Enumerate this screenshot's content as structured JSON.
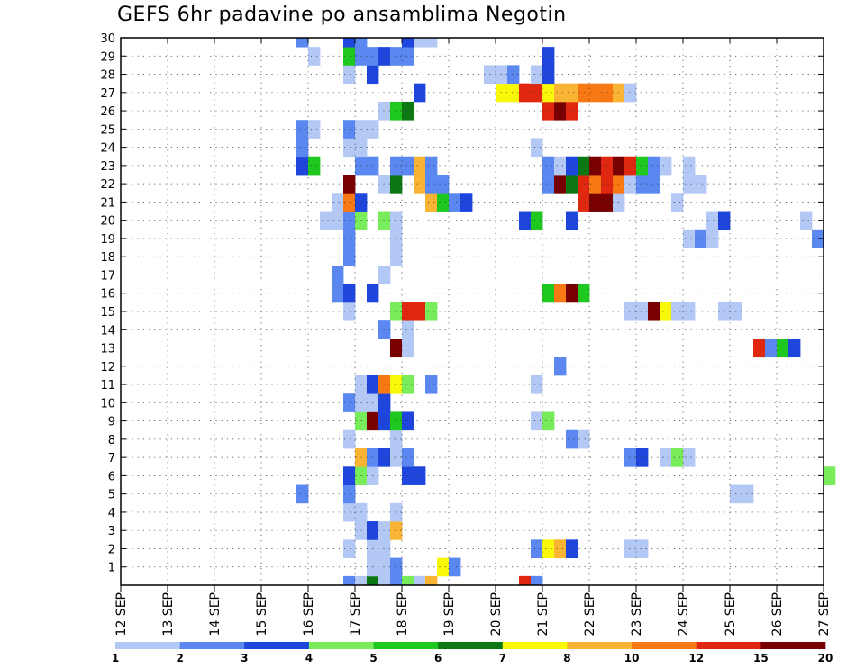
{
  "chart_data": {
    "type": "heatmap",
    "title": "GEFS 6hr padavine po ansamblima Negotin",
    "x_ticks": [
      "12 SEP",
      "13 SEP",
      "14 SEP",
      "15 SEP",
      "16 SEP",
      "17 SEP",
      "18 SEP",
      "19 SEP",
      "20 SEP",
      "21 SEP",
      "22 SEP",
      "23 SEP",
      "24 SEP",
      "25 SEP",
      "26 SEP",
      "27 SEP"
    ],
    "y_ticks": [
      "1",
      "2",
      "3",
      "4",
      "5",
      "6",
      "7",
      "8",
      "9",
      "10",
      "11",
      "12",
      "13",
      "14",
      "15",
      "16",
      "17",
      "18",
      "19",
      "20",
      "21",
      "22",
      "23",
      "24",
      "25",
      "26",
      "27",
      "28",
      "29",
      "30"
    ],
    "x_unit": "day offset from 12 SEP 00Z, 6-hourly steps of 0.25",
    "y_range": [
      0,
      30
    ],
    "x_range": [
      0,
      15
    ],
    "grid": "dotted",
    "colorbar": {
      "labels": [
        "1",
        "2",
        "3",
        "4",
        "5",
        "6",
        "7",
        "8",
        "10",
        "12",
        "15",
        "20"
      ],
      "colors": [
        "#b4c8f6",
        "#5a88f0",
        "#1e46dc",
        "#78ec5a",
        "#1ec81e",
        "#0c7814",
        "#f8f808",
        "#f8b432",
        "#f87814",
        "#e02810",
        "#780000"
      ]
    },
    "cells": [
      [
        0,
        4.75,
        2
      ],
      [
        0,
        5.0,
        1
      ],
      [
        0,
        5.25,
        6
      ],
      [
        0,
        5.5,
        1
      ],
      [
        0,
        5.75,
        2
      ],
      [
        0,
        6.0,
        4
      ],
      [
        0,
        6.25,
        1
      ],
      [
        0,
        6.5,
        8
      ],
      [
        0,
        8.5,
        10
      ],
      [
        0,
        8.75,
        2
      ],
      [
        1,
        5.25,
        1
      ],
      [
        1,
        5.5,
        1
      ],
      [
        1,
        5.75,
        2
      ],
      [
        1,
        6.75,
        7
      ],
      [
        1,
        7.0,
        2
      ],
      [
        2,
        4.75,
        1
      ],
      [
        2,
        5.25,
        1
      ],
      [
        2,
        5.5,
        1
      ],
      [
        2,
        8.75,
        2
      ],
      [
        2,
        9.0,
        7
      ],
      [
        2,
        9.25,
        8
      ],
      [
        2,
        9.5,
        3
      ],
      [
        2,
        10.75,
        1
      ],
      [
        2,
        11.0,
        1
      ],
      [
        3,
        5.0,
        1
      ],
      [
        3,
        5.25,
        3
      ],
      [
        3,
        5.5,
        1
      ],
      [
        3,
        5.75,
        8
      ],
      [
        4,
        4.75,
        1
      ],
      [
        4,
        5.0,
        1
      ],
      [
        4,
        5.75,
        1
      ],
      [
        5,
        3.75,
        2
      ],
      [
        5,
        4.75,
        2
      ],
      [
        5,
        13.0,
        1
      ],
      [
        5,
        13.25,
        1
      ],
      [
        6,
        4.75,
        3
      ],
      [
        6,
        5.0,
        4
      ],
      [
        6,
        5.25,
        1
      ],
      [
        6,
        6.0,
        3
      ],
      [
        6,
        6.25,
        3
      ],
      [
        6,
        15.0,
        4
      ],
      [
        7,
        5.0,
        8
      ],
      [
        7,
        5.25,
        2
      ],
      [
        7,
        5.5,
        3
      ],
      [
        7,
        5.75,
        1
      ],
      [
        7,
        6.0,
        2
      ],
      [
        7,
        10.75,
        2
      ],
      [
        7,
        11.0,
        3
      ],
      [
        7,
        11.5,
        1
      ],
      [
        7,
        11.75,
        4
      ],
      [
        7,
        12.0,
        1
      ],
      [
        8,
        4.75,
        1
      ],
      [
        8,
        5.75,
        1
      ],
      [
        8,
        9.5,
        2
      ],
      [
        8,
        9.75,
        1
      ],
      [
        9,
        5.0,
        4
      ],
      [
        9,
        5.25,
        11
      ],
      [
        9,
        5.5,
        3
      ],
      [
        9,
        5.75,
        5
      ],
      [
        9,
        6.0,
        3
      ],
      [
        9,
        8.75,
        1
      ],
      [
        9,
        9.0,
        4
      ],
      [
        10,
        4.75,
        2
      ],
      [
        10,
        5.0,
        1
      ],
      [
        10,
        5.25,
        1
      ],
      [
        10,
        5.5,
        3
      ],
      [
        11,
        5.0,
        1
      ],
      [
        11,
        5.25,
        3
      ],
      [
        11,
        5.5,
        9
      ],
      [
        11,
        5.75,
        7
      ],
      [
        11,
        6.0,
        4
      ],
      [
        11,
        6.5,
        2
      ],
      [
        11,
        8.75,
        1
      ],
      [
        12,
        9.25,
        2
      ],
      [
        13,
        5.75,
        11
      ],
      [
        13,
        6.0,
        1
      ],
      [
        13,
        13.5,
        10
      ],
      [
        13,
        13.75,
        2
      ],
      [
        13,
        14.0,
        5
      ],
      [
        13,
        14.25,
        3
      ],
      [
        14,
        5.5,
        2
      ],
      [
        14,
        6.0,
        1
      ],
      [
        15,
        4.75,
        1
      ],
      [
        15,
        5.75,
        4
      ],
      [
        15,
        6.0,
        10
      ],
      [
        15,
        6.25,
        10
      ],
      [
        15,
        6.5,
        4
      ],
      [
        15,
        10.75,
        1
      ],
      [
        15,
        11.0,
        1
      ],
      [
        15,
        11.25,
        11
      ],
      [
        15,
        11.5,
        7
      ],
      [
        15,
        11.75,
        1
      ],
      [
        15,
        12.0,
        1
      ],
      [
        15,
        12.75,
        1
      ],
      [
        15,
        13.0,
        1
      ],
      [
        16,
        4.5,
        2
      ],
      [
        16,
        4.75,
        3
      ],
      [
        16,
        5.25,
        3
      ],
      [
        16,
        9.0,
        5
      ],
      [
        16,
        9.25,
        9
      ],
      [
        16,
        9.5,
        11
      ],
      [
        16,
        9.75,
        5
      ],
      [
        17,
        4.5,
        2
      ],
      [
        17,
        5.5,
        1
      ],
      [
        18,
        4.75,
        2
      ],
      [
        18,
        5.75,
        1
      ],
      [
        19,
        4.75,
        2
      ],
      [
        19,
        5.75,
        1
      ],
      [
        19,
        12.0,
        1
      ],
      [
        19,
        12.25,
        2
      ],
      [
        19,
        12.5,
        1
      ],
      [
        19,
        14.75,
        2
      ],
      [
        20,
        4.25,
        1
      ],
      [
        20,
        4.5,
        1
      ],
      [
        20,
        4.75,
        2
      ],
      [
        20,
        5.0,
        4
      ],
      [
        20,
        5.5,
        4
      ],
      [
        20,
        5.75,
        1
      ],
      [
        20,
        8.5,
        3
      ],
      [
        20,
        8.75,
        5
      ],
      [
        20,
        9.5,
        3
      ],
      [
        20,
        12.5,
        1
      ],
      [
        20,
        12.75,
        3
      ],
      [
        20,
        14.5,
        1
      ],
      [
        21,
        4.5,
        1
      ],
      [
        21,
        4.75,
        9
      ],
      [
        21,
        5.0,
        3
      ],
      [
        21,
        6.5,
        8
      ],
      [
        21,
        6.75,
        5
      ],
      [
        21,
        7.0,
        2
      ],
      [
        21,
        7.25,
        3
      ],
      [
        21,
        9.75,
        10
      ],
      [
        21,
        10.0,
        11
      ],
      [
        21,
        10.25,
        11
      ],
      [
        21,
        10.5,
        1
      ],
      [
        21,
        11.75,
        1
      ],
      [
        22,
        4.75,
        11
      ],
      [
        22,
        5.5,
        1
      ],
      [
        22,
        5.75,
        6
      ],
      [
        22,
        6.25,
        8
      ],
      [
        22,
        6.5,
        2
      ],
      [
        22,
        6.75,
        2
      ],
      [
        22,
        9.0,
        2
      ],
      [
        22,
        9.25,
        11
      ],
      [
        22,
        9.5,
        6
      ],
      [
        22,
        9.75,
        10
      ],
      [
        22,
        10.0,
        9
      ],
      [
        22,
        10.25,
        10
      ],
      [
        22,
        10.5,
        9
      ],
      [
        22,
        10.75,
        1
      ],
      [
        22,
        11.0,
        2
      ],
      [
        22,
        11.25,
        2
      ],
      [
        22,
        12.0,
        1
      ],
      [
        22,
        12.25,
        1
      ],
      [
        23,
        3.75,
        3
      ],
      [
        23,
        4.0,
        5
      ],
      [
        23,
        5.0,
        2
      ],
      [
        23,
        5.25,
        2
      ],
      [
        23,
        5.75,
        2
      ],
      [
        23,
        6.0,
        2
      ],
      [
        23,
        6.25,
        8
      ],
      [
        23,
        6.5,
        2
      ],
      [
        23,
        9.0,
        2
      ],
      [
        23,
        9.25,
        1
      ],
      [
        23,
        9.5,
        3
      ],
      [
        23,
        9.75,
        6
      ],
      [
        23,
        10.0,
        11
      ],
      [
        23,
        10.25,
        10
      ],
      [
        23,
        10.5,
        11
      ],
      [
        23,
        10.75,
        10
      ],
      [
        23,
        11.0,
        5
      ],
      [
        23,
        11.25,
        2
      ],
      [
        23,
        11.5,
        1
      ],
      [
        23,
        12.0,
        1
      ],
      [
        24,
        3.75,
        2
      ],
      [
        24,
        4.75,
        1
      ],
      [
        24,
        5.0,
        1
      ],
      [
        24,
        8.75,
        1
      ],
      [
        25,
        3.75,
        2
      ],
      [
        25,
        4.0,
        1
      ],
      [
        25,
        4.75,
        2
      ],
      [
        25,
        5.0,
        1
      ],
      [
        25,
        5.25,
        1
      ],
      [
        26,
        5.5,
        1
      ],
      [
        26,
        5.75,
        5
      ],
      [
        26,
        6.0,
        6
      ],
      [
        26,
        9.0,
        10
      ],
      [
        26,
        9.25,
        11
      ],
      [
        26,
        9.5,
        10
      ],
      [
        27,
        6.25,
        3
      ],
      [
        27,
        8.0,
        7
      ],
      [
        27,
        8.25,
        7
      ],
      [
        27,
        8.5,
        10
      ],
      [
        27,
        8.75,
        10
      ],
      [
        27,
        9.0,
        7
      ],
      [
        27,
        9.25,
        8
      ],
      [
        27,
        9.5,
        8
      ],
      [
        27,
        9.75,
        9
      ],
      [
        27,
        10.0,
        9
      ],
      [
        27,
        10.25,
        9
      ],
      [
        27,
        10.5,
        8
      ],
      [
        27,
        10.75,
        1
      ],
      [
        28,
        4.75,
        1
      ],
      [
        28,
        5.25,
        3
      ],
      [
        28,
        7.75,
        1
      ],
      [
        28,
        8.0,
        1
      ],
      [
        28,
        8.25,
        2
      ],
      [
        28,
        8.75,
        1
      ],
      [
        28,
        9.0,
        3
      ],
      [
        29,
        4.0,
        1
      ],
      [
        29,
        4.75,
        5
      ],
      [
        29,
        5.0,
        2
      ],
      [
        29,
        5.25,
        2
      ],
      [
        29,
        5.5,
        3
      ],
      [
        29,
        5.75,
        2
      ],
      [
        29,
        6.0,
        2
      ],
      [
        29,
        9.0,
        3
      ],
      [
        30,
        3.75,
        2
      ],
      [
        30,
        4.75,
        3
      ],
      [
        30,
        5.0,
        2
      ],
      [
        30,
        6.0,
        3
      ],
      [
        30,
        6.25,
        1
      ],
      [
        30,
        6.5,
        1
      ]
    ]
  }
}
